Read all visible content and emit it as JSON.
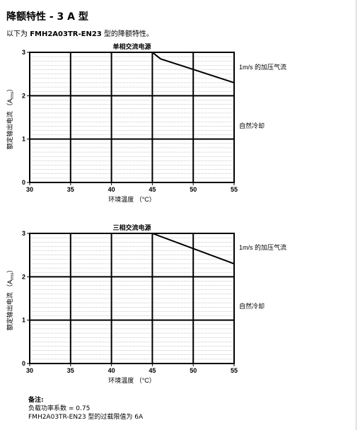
{
  "page": {
    "title": "降额特性 - 3 A 型",
    "intro_prefix": "以下为 ",
    "intro_model": "FMH2A03TR-EN23",
    "intro_suffix": " 型的降额特性。"
  },
  "chart_data": [
    {
      "type": "line",
      "title": "单相交流电源",
      "xlabel": "环境温度 （°C）",
      "ylabel_prefix": "额定输出电流 （A",
      "ylabel_sub": "rms",
      "ylabel_suffix": "）",
      "xlim": [
        30,
        55
      ],
      "ylim": [
        0,
        3
      ],
      "xticks": [
        "30",
        "35",
        "40",
        "45",
        "50",
        "55"
      ],
      "yticks": [
        "0",
        "1",
        "2",
        "3"
      ],
      "grid": true,
      "series": [
        {
          "name": "1m/s 的加压气流",
          "x": [
            30,
            45,
            46,
            55
          ],
          "y": [
            3,
            3,
            2.85,
            2.3
          ]
        },
        {
          "name": "自然冷却",
          "x": [
            30,
            55
          ],
          "y": [
            1,
            1
          ]
        }
      ]
    },
    {
      "type": "line",
      "title": "三相交流电源",
      "xlabel": "环境温度 （°C）",
      "ylabel_prefix": "额定输出电流 （A",
      "ylabel_sub": "rms",
      "ylabel_suffix": "）",
      "xlim": [
        30,
        55
      ],
      "ylim": [
        0,
        3
      ],
      "xticks": [
        "30",
        "35",
        "40",
        "45",
        "50",
        "55"
      ],
      "yticks": [
        "0",
        "1",
        "2",
        "3"
      ],
      "grid": true,
      "series": [
        {
          "name": "1m/s 的加压气流",
          "x": [
            30,
            45,
            55
          ],
          "y": [
            3,
            3,
            2.3
          ]
        },
        {
          "name": "自然冷却",
          "x": [
            30,
            55
          ],
          "y": [
            1,
            1
          ]
        }
      ]
    }
  ],
  "notes": {
    "heading": "备注:",
    "line1": "负载功率系数 = 0.75",
    "line2": "FMH2A03TR-EN23 型的过载限值为 6A"
  }
}
